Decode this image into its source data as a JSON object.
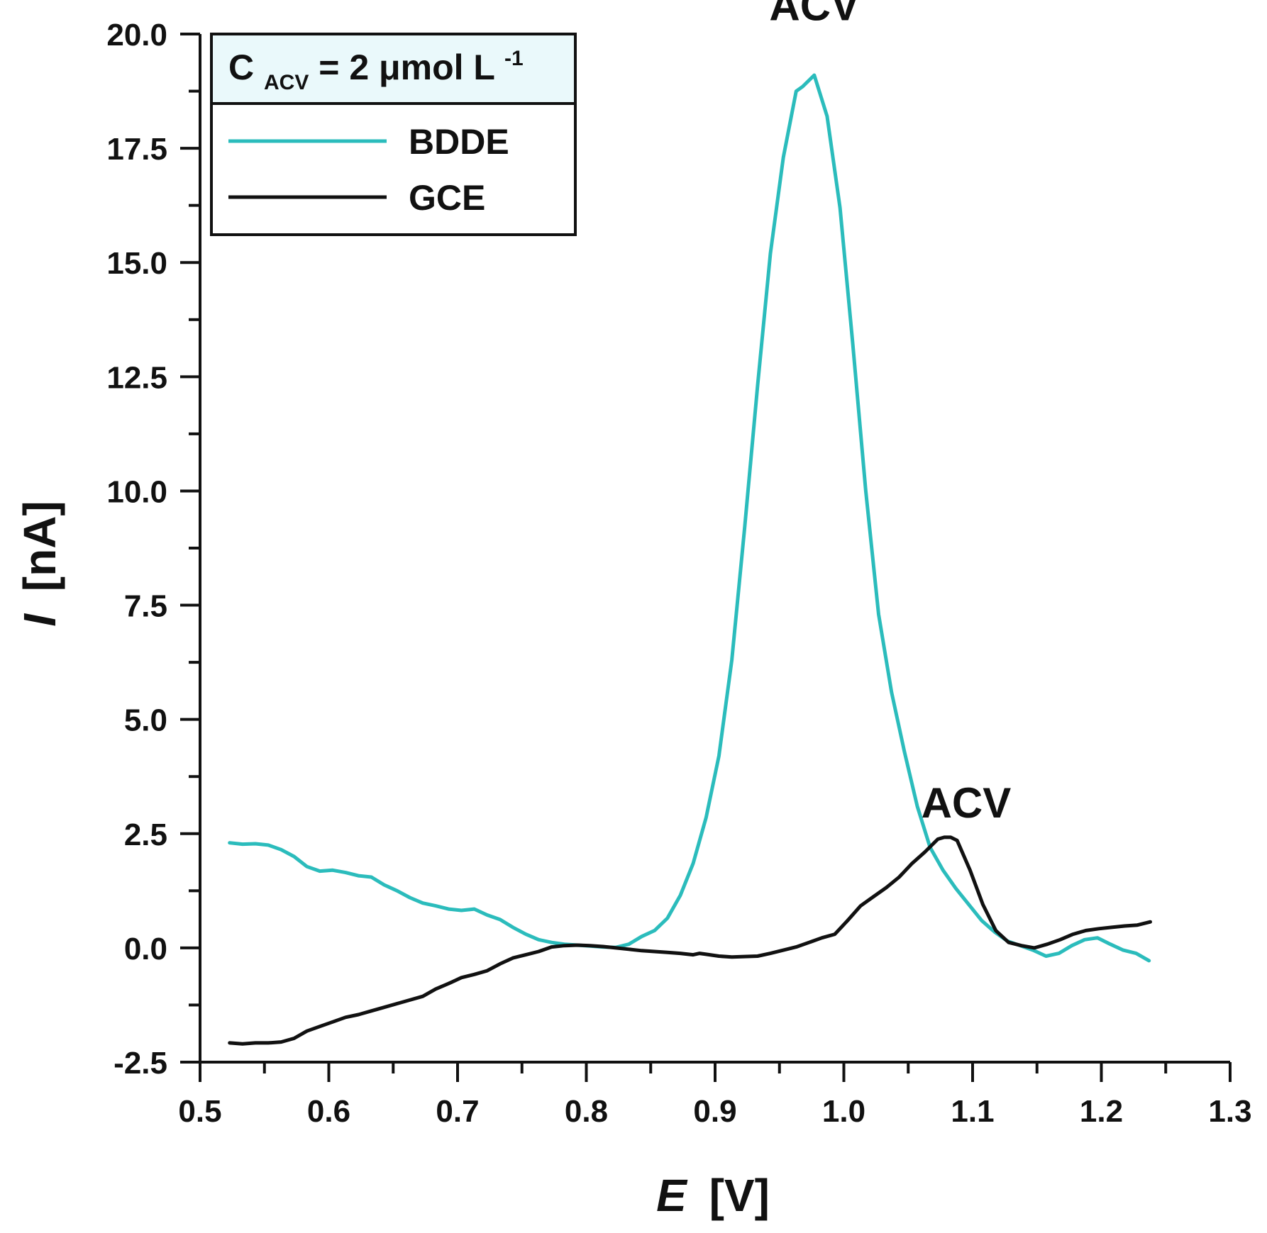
{
  "chart_data": {
    "type": "line",
    "xlabel": "E",
    "xlabel_unit": "[V]",
    "ylabel": "I",
    "ylabel_unit": "[nA]",
    "xlim": [
      0.5,
      1.3
    ],
    "ylim": [
      -2.5,
      20.0
    ],
    "x_ticks": [
      0.5,
      0.6,
      0.7,
      0.8,
      0.9,
      1.0,
      1.1,
      1.2,
      1.3
    ],
    "x_tick_labels": [
      "0.5",
      "0.6",
      "0.7",
      "0.8",
      "0.9",
      "1.0",
      "1.1",
      "1.2",
      "1.3"
    ],
    "y_ticks": [
      -2.5,
      0.0,
      2.5,
      5.0,
      7.5,
      10.0,
      12.5,
      15.0,
      17.5,
      20.0
    ],
    "y_tick_labels": [
      "-2.5",
      "0.0",
      "2.5",
      "5.0",
      "7.5",
      "10.0",
      "12.5",
      "15.0",
      "17.5",
      "20.0"
    ],
    "grid": false,
    "legend": {
      "placement": "top-left",
      "title_main": "C",
      "title_sub": "ACV",
      "title_rest": " = 2 μmol L",
      "title_sup": "-1"
    },
    "annotations": [
      {
        "text": "ACV",
        "x": 0.977,
        "y": 20.3
      },
      {
        "text": "ACV",
        "x": 1.095,
        "y": 2.85
      }
    ],
    "series": [
      {
        "name": "BDDE",
        "color": "#2bbcbc",
        "x": [
          0.523,
          0.533,
          0.543,
          0.553,
          0.563,
          0.573,
          0.583,
          0.593,
          0.603,
          0.613,
          0.623,
          0.633,
          0.643,
          0.653,
          0.663,
          0.673,
          0.683,
          0.693,
          0.703,
          0.713,
          0.723,
          0.733,
          0.743,
          0.753,
          0.763,
          0.773,
          0.783,
          0.793,
          0.803,
          0.813,
          0.823,
          0.833,
          0.843,
          0.853,
          0.863,
          0.873,
          0.883,
          0.893,
          0.903,
          0.913,
          0.923,
          0.933,
          0.943,
          0.953,
          0.963,
          0.968,
          0.977,
          0.987,
          0.997,
          1.007,
          1.017,
          1.027,
          1.037,
          1.047,
          1.057,
          1.067,
          1.077,
          1.087,
          1.097,
          1.107,
          1.117,
          1.127,
          1.137,
          1.147,
          1.157,
          1.167,
          1.177,
          1.187,
          1.197,
          1.207,
          1.217,
          1.227,
          1.237
        ],
        "y": [
          2.3,
          2.27,
          2.28,
          2.25,
          2.15,
          2.0,
          1.78,
          1.68,
          1.7,
          1.65,
          1.58,
          1.55,
          1.38,
          1.25,
          1.1,
          0.98,
          0.92,
          0.85,
          0.82,
          0.85,
          0.72,
          0.62,
          0.45,
          0.3,
          0.18,
          0.12,
          0.08,
          0.06,
          0.04,
          0.02,
          0.01,
          0.08,
          0.25,
          0.38,
          0.65,
          1.15,
          1.85,
          2.85,
          4.2,
          6.3,
          9.2,
          12.3,
          15.2,
          17.3,
          18.75,
          18.85,
          19.1,
          18.2,
          16.2,
          13.2,
          10.0,
          7.3,
          5.6,
          4.3,
          3.1,
          2.2,
          1.7,
          1.3,
          0.95,
          0.6,
          0.35,
          0.15,
          0.05,
          -0.05,
          -0.18,
          -0.12,
          0.05,
          0.18,
          0.22,
          0.08,
          -0.05,
          -0.12,
          -0.28
        ]
      },
      {
        "name": "GCE",
        "color": "#111111",
        "x": [
          0.523,
          0.533,
          0.543,
          0.553,
          0.563,
          0.573,
          0.583,
          0.593,
          0.603,
          0.613,
          0.623,
          0.633,
          0.643,
          0.653,
          0.663,
          0.673,
          0.683,
          0.693,
          0.703,
          0.713,
          0.723,
          0.733,
          0.743,
          0.753,
          0.763,
          0.773,
          0.783,
          0.793,
          0.803,
          0.813,
          0.823,
          0.833,
          0.843,
          0.853,
          0.863,
          0.873,
          0.883,
          0.888,
          0.893,
          0.903,
          0.913,
          0.923,
          0.933,
          0.943,
          0.953,
          0.963,
          0.973,
          0.983,
          0.993,
          1.003,
          1.013,
          1.023,
          1.033,
          1.043,
          1.053,
          1.063,
          1.073,
          1.078,
          1.083,
          1.088,
          1.098,
          1.108,
          1.118,
          1.128,
          1.138,
          1.148,
          1.158,
          1.168,
          1.178,
          1.188,
          1.198,
          1.208,
          1.218,
          1.228,
          1.238
        ],
        "y": [
          -2.08,
          -2.1,
          -2.08,
          -2.08,
          -2.06,
          -1.98,
          -1.82,
          -1.72,
          -1.62,
          -1.52,
          -1.46,
          -1.38,
          -1.3,
          -1.22,
          -1.14,
          -1.06,
          -0.9,
          -0.78,
          -0.65,
          -0.58,
          -0.5,
          -0.35,
          -0.22,
          -0.15,
          -0.08,
          0.02,
          0.05,
          0.06,
          0.05,
          0.03,
          0.0,
          -0.03,
          -0.06,
          -0.08,
          -0.1,
          -0.12,
          -0.15,
          -0.12,
          -0.14,
          -0.18,
          -0.2,
          -0.19,
          -0.18,
          -0.12,
          -0.05,
          0.02,
          0.12,
          0.22,
          0.3,
          0.6,
          0.92,
          1.12,
          1.32,
          1.55,
          1.85,
          2.1,
          2.38,
          2.42,
          2.42,
          2.35,
          1.7,
          0.95,
          0.38,
          0.12,
          0.05,
          0.0,
          0.08,
          0.18,
          0.3,
          0.38,
          0.42,
          0.45,
          0.48,
          0.5,
          0.57
        ]
      }
    ]
  }
}
